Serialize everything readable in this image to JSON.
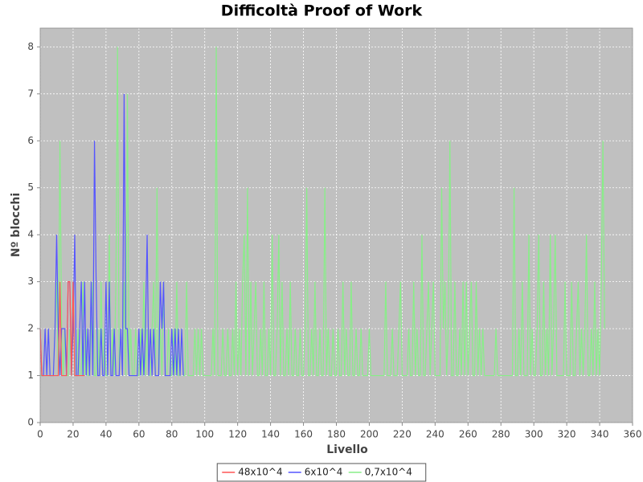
{
  "chart_data": {
    "type": "line",
    "title": "Difficoltà Proof of Work",
    "x_label": "Livello",
    "y_label": "Nº blocchi",
    "xlim": [
      0,
      360
    ],
    "ylim": [
      0,
      8.4
    ],
    "xticks": [
      0,
      20,
      40,
      60,
      80,
      100,
      120,
      140,
      160,
      180,
      200,
      220,
      240,
      260,
      280,
      300,
      320,
      340,
      360
    ],
    "yticks": [
      0,
      1,
      2,
      3,
      4,
      5,
      6,
      7,
      8
    ],
    "grid": true,
    "legend": "bottom",
    "series": [
      {
        "name": "48x10^4",
        "color": "#ff5555",
        "x": [
          0,
          1,
          2,
          3,
          4,
          5,
          6,
          7,
          8,
          9,
          10,
          11,
          12,
          13,
          14,
          15,
          16,
          17,
          18,
          19,
          20,
          21,
          22,
          23,
          24,
          25,
          26,
          27
        ],
        "values": [
          2,
          1,
          1,
          1,
          1,
          1,
          1,
          1,
          1,
          1,
          1,
          1,
          3,
          1,
          1,
          1,
          1,
          3,
          3,
          1,
          3,
          1,
          1,
          1,
          1,
          1,
          1,
          1
        ]
      },
      {
        "name": "6x10^4",
        "color": "#5555ff",
        "x": [
          0,
          1,
          2,
          3,
          4,
          5,
          6,
          7,
          8,
          9,
          10,
          11,
          12,
          13,
          14,
          15,
          16,
          17,
          18,
          19,
          20,
          21,
          22,
          23,
          24,
          25,
          26,
          27,
          28,
          29,
          30,
          31,
          32,
          33,
          34,
          35,
          36,
          37,
          38,
          39,
          40,
          41,
          42,
          43,
          44,
          45,
          46,
          47,
          48,
          49,
          50,
          51,
          52,
          53,
          54,
          55,
          56,
          57,
          58,
          59,
          60,
          61,
          62,
          63,
          64,
          65,
          66,
          67,
          68,
          69,
          70,
          71,
          72,
          73,
          74,
          75,
          76,
          77,
          78,
          79,
          80,
          81,
          82,
          83,
          84,
          85,
          86,
          87
        ],
        "values": [
          2,
          1,
          1,
          2,
          1,
          2,
          1,
          1,
          1,
          2,
          4,
          2,
          1,
          2,
          2,
          2,
          1,
          3,
          3,
          1,
          2,
          4,
          1,
          1,
          2,
          3,
          1,
          3,
          1,
          2,
          1,
          3,
          1,
          6,
          3,
          1,
          1,
          2,
          1,
          1,
          3,
          1,
          3,
          1,
          1,
          2,
          1,
          1,
          1,
          2,
          1,
          7,
          2,
          2,
          1,
          1,
          1,
          1,
          1,
          1,
          2,
          1,
          2,
          1,
          2,
          4,
          1,
          2,
          1,
          2,
          1,
          1,
          1,
          3,
          2,
          3,
          1,
          1,
          1,
          1,
          2,
          1,
          2,
          1,
          2,
          1,
          2,
          1
        ]
      },
      {
        "name": "0,7x10^4",
        "color": "#88ee88",
        "x": [
          0,
          1,
          2,
          3,
          4,
          5,
          6,
          7,
          8,
          9,
          10,
          11,
          12,
          13,
          14,
          15,
          16,
          17,
          18,
          19,
          20,
          21,
          22,
          23,
          24,
          25,
          26,
          27,
          28,
          29,
          30,
          31,
          32,
          33,
          34,
          35,
          36,
          37,
          38,
          39,
          40,
          41,
          42,
          43,
          44,
          45,
          46,
          47,
          48,
          49,
          50,
          51,
          52,
          53,
          54,
          55,
          56,
          57,
          58,
          59,
          60,
          61,
          62,
          63,
          64,
          65,
          66,
          67,
          68,
          69,
          70,
          71,
          72,
          73,
          74,
          75,
          76,
          77,
          78,
          79,
          80,
          81,
          82,
          83,
          84,
          85,
          86,
          87,
          88,
          89,
          90,
          91,
          92,
          93,
          94,
          95,
          96,
          97,
          98,
          99,
          100,
          101,
          102,
          103,
          104,
          105,
          106,
          107,
          108,
          109,
          110,
          111,
          112,
          113,
          114,
          115,
          116,
          117,
          118,
          119,
          120,
          121,
          122,
          123,
          124,
          125,
          126,
          127,
          128,
          129,
          130,
          131,
          132,
          133,
          134,
          135,
          136,
          137,
          138,
          139,
          140,
          141,
          142,
          143,
          144,
          145,
          146,
          147,
          148,
          149,
          150,
          151,
          152,
          153,
          154,
          155,
          156,
          157,
          158,
          159,
          160,
          161,
          162,
          163,
          164,
          165,
          166,
          167,
          168,
          169,
          170,
          171,
          172,
          173,
          174,
          175,
          176,
          177,
          178,
          179,
          180,
          181,
          182,
          183,
          184,
          185,
          186,
          187,
          188,
          189,
          190,
          191,
          192,
          193,
          194,
          195,
          196,
          197,
          198,
          199,
          200,
          201,
          202,
          203,
          204,
          205,
          206,
          207,
          208,
          209,
          210,
          211,
          212,
          213,
          214,
          215,
          216,
          217,
          218,
          219,
          220,
          221,
          222,
          223,
          224,
          225,
          226,
          227,
          228,
          229,
          230,
          231,
          232,
          233,
          234,
          235,
          236,
          237,
          238,
          239,
          240,
          241,
          242,
          243,
          244,
          245,
          246,
          247,
          248,
          249,
          250,
          251,
          252,
          253,
          254,
          255,
          256,
          257,
          258,
          259,
          260,
          261,
          262,
          263,
          264,
          265,
          266,
          267,
          268,
          269,
          270,
          271,
          272,
          273,
          274,
          275,
          276,
          277,
          278,
          279,
          280,
          281,
          282,
          283,
          284,
          285,
          286,
          287,
          288,
          289,
          290,
          291,
          292,
          293,
          294,
          295,
          296,
          297,
          298,
          299,
          300,
          301,
          302,
          303,
          304,
          305,
          306,
          307,
          308,
          309,
          310,
          311,
          312,
          313,
          314,
          315,
          316,
          317,
          318,
          319,
          320,
          321,
          322,
          323,
          324,
          325,
          326,
          327,
          328,
          329,
          330,
          331,
          332,
          333,
          334,
          335,
          336,
          337,
          338,
          339,
          340,
          341,
          342,
          343
        ],
        "values": [
          1,
          1,
          1,
          1,
          1,
          1,
          1,
          1,
          1,
          2,
          3,
          1,
          6,
          2,
          1,
          2,
          1,
          1,
          2,
          1,
          3,
          1,
          1,
          2,
          1,
          1,
          3,
          1,
          2,
          1,
          1,
          2,
          3,
          1,
          1,
          2,
          1,
          3,
          1,
          2,
          1,
          1,
          4,
          1,
          2,
          1,
          3,
          8,
          1,
          2,
          1,
          3,
          1,
          7,
          1,
          2,
          1,
          1,
          2,
          1,
          1,
          2,
          1,
          3,
          1,
          2,
          1,
          1,
          2,
          3,
          1,
          5,
          1,
          2,
          1,
          3,
          1,
          1,
          2,
          1,
          1,
          2,
          1,
          3,
          1,
          1,
          2,
          1,
          1,
          3,
          1,
          1,
          1,
          1,
          2,
          1,
          2,
          1,
          2,
          1,
          1,
          1,
          1,
          1,
          1,
          2,
          1,
          8,
          1,
          1,
          1,
          2,
          1,
          1,
          2,
          1,
          1,
          2,
          1,
          3,
          1,
          2,
          1,
          3,
          4,
          1,
          5,
          1,
          3,
          1,
          2,
          3,
          1,
          1,
          2,
          1,
          3,
          1,
          1,
          2,
          1,
          4,
          1,
          1,
          2,
          4,
          1,
          3,
          1,
          1,
          2,
          1,
          3,
          1,
          1,
          2,
          1,
          1,
          2,
          1,
          1,
          2,
          5,
          1,
          1,
          2,
          1,
          3,
          1,
          1,
          2,
          1,
          1,
          5,
          1,
          2,
          1,
          1,
          2,
          1,
          1,
          2,
          1,
          1,
          3,
          1,
          2,
          1,
          1,
          3,
          1,
          1,
          2,
          1,
          1,
          2,
          1,
          1,
          1,
          1,
          2,
          1,
          1,
          1,
          1,
          1,
          1,
          1,
          1,
          1,
          3,
          1,
          1,
          1,
          2,
          1,
          1,
          1,
          2,
          3,
          1,
          1,
          1,
          1,
          2,
          1,
          1,
          3,
          1,
          2,
          1,
          1,
          4,
          1,
          1,
          2,
          3,
          1,
          2,
          3,
          1,
          1,
          1,
          1,
          5,
          2,
          3,
          1,
          2,
          6,
          1,
          1,
          3,
          1,
          1,
          2,
          1,
          3,
          1,
          3,
          1,
          2,
          3,
          1,
          1,
          3,
          1,
          2,
          1,
          2,
          1,
          1,
          1,
          1,
          1,
          1,
          1,
          2,
          1,
          1,
          1,
          1,
          1,
          1,
          1,
          1,
          1,
          1,
          5,
          1,
          1,
          2,
          1,
          3,
          1,
          1,
          1,
          4,
          1,
          2,
          1,
          1,
          2,
          4,
          1,
          1,
          3,
          1,
          2,
          1,
          4,
          1,
          2,
          4,
          1,
          1,
          1,
          1,
          1,
          3,
          1,
          1,
          1,
          3,
          1,
          1,
          2,
          3,
          1,
          2,
          1,
          2,
          4,
          1,
          1,
          2,
          1,
          3,
          1,
          2,
          1,
          3,
          6,
          2
        ]
      }
    ]
  }
}
